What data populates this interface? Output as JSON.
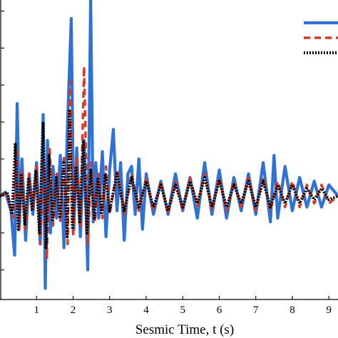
{
  "chart_data": {
    "type": "line",
    "title": "",
    "xlabel": "Sesmic Time, t (s)",
    "ylabel": "",
    "xlim": [
      0,
      9.25
    ],
    "ylim": [
      -2.8,
      5.3
    ],
    "x_ticks": [
      1,
      2,
      3,
      4,
      5,
      6,
      7,
      8,
      9
    ],
    "x_tick_labels": [
      "1",
      "2",
      "3",
      "4",
      "5",
      "6",
      "7",
      "8",
      "9"
    ],
    "grid": false,
    "legend": "top-right",
    "series": [
      {
        "style": "solid",
        "color": "#2f72d6",
        "x": [
          0.0,
          0.15,
          0.3,
          0.4,
          0.47,
          0.53,
          0.6,
          0.7,
          0.8,
          0.9,
          1.0,
          1.1,
          1.18,
          1.24,
          1.3,
          1.38,
          1.45,
          1.55,
          1.65,
          1.75,
          1.85,
          1.95,
          2.02,
          2.1,
          2.2,
          2.3,
          2.4,
          2.48,
          2.55,
          2.62,
          2.7,
          2.8,
          2.9,
          3.0,
          3.1,
          3.2,
          3.3,
          3.4,
          3.5,
          3.6,
          3.7,
          3.8,
          3.9,
          4.0,
          4.2,
          4.4,
          4.6,
          4.8,
          5.0,
          5.2,
          5.4,
          5.6,
          5.8,
          6.0,
          6.2,
          6.4,
          6.6,
          6.8,
          7.0,
          7.2,
          7.4,
          7.5,
          7.6,
          7.8,
          8.0,
          8.2,
          8.4,
          8.6,
          8.8,
          9.0,
          9.25
        ],
        "y": [
          0.0,
          0.1,
          -0.4,
          -1.6,
          2.5,
          -0.8,
          1.0,
          -1.2,
          0.6,
          -0.5,
          0.9,
          -1.3,
          2.2,
          -2.5,
          1.5,
          -1.0,
          0.8,
          -0.6,
          1.1,
          -1.4,
          2.0,
          4.8,
          -0.9,
          1.3,
          -1.1,
          1.5,
          -2.0,
          5.4,
          -0.7,
          0.9,
          -0.6,
          1.2,
          -1.1,
          0.7,
          1.8,
          -0.4,
          0.9,
          -1.2,
          0.6,
          0.8,
          -0.5,
          1.0,
          -0.9,
          0.6,
          -0.5,
          0.4,
          -0.5,
          0.6,
          -0.4,
          0.5,
          -0.6,
          0.9,
          -0.5,
          0.7,
          -0.6,
          0.5,
          -0.4,
          0.6,
          -0.5,
          0.9,
          -0.7,
          1.1,
          -0.6,
          0.8,
          -0.4,
          0.5,
          -0.3,
          0.4,
          -0.3,
          0.3,
          0.0
        ]
      },
      {
        "style": "dashed",
        "color": "#d43a25",
        "x": [
          0.0,
          0.2,
          0.35,
          0.45,
          0.52,
          0.6,
          0.7,
          0.8,
          0.9,
          1.0,
          1.1,
          1.2,
          1.28,
          1.36,
          1.45,
          1.55,
          1.65,
          1.75,
          1.85,
          1.92,
          2.0,
          2.1,
          2.2,
          2.3,
          2.4,
          2.5,
          2.6,
          2.7,
          2.8,
          2.9,
          3.0,
          3.2,
          3.4,
          3.6,
          3.8,
          4.0,
          4.2,
          4.4,
          4.6,
          4.8,
          5.0,
          5.2,
          5.4,
          5.6,
          5.8,
          6.0,
          6.2,
          6.4,
          6.6,
          6.8,
          7.0,
          7.2,
          7.4,
          7.6,
          7.8,
          8.0,
          8.2,
          8.4,
          8.6,
          8.8,
          9.0,
          9.25
        ],
        "y": [
          0.0,
          0.1,
          -0.6,
          1.3,
          -1.0,
          0.7,
          -0.9,
          0.6,
          -0.4,
          0.8,
          -1.3,
          1.0,
          -1.7,
          1.3,
          -0.8,
          0.6,
          -0.7,
          1.1,
          -1.3,
          3.1,
          -1.1,
          1.0,
          -0.9,
          3.5,
          -1.3,
          0.9,
          -0.7,
          0.6,
          -0.6,
          0.8,
          -0.5,
          0.7,
          -0.5,
          0.6,
          -0.4,
          0.5,
          -0.4,
          0.4,
          -0.5,
          0.4,
          -0.4,
          0.5,
          -0.3,
          0.6,
          -0.4,
          0.5,
          -0.4,
          0.4,
          -0.3,
          0.5,
          -0.4,
          0.5,
          -0.4,
          0.4,
          -0.3,
          0.4,
          -0.3,
          0.3,
          -0.2,
          0.3,
          -0.2,
          0.0
        ]
      },
      {
        "style": "dotted",
        "color": "#000000",
        "x": [
          0.0,
          0.2,
          0.33,
          0.42,
          0.5,
          0.58,
          0.68,
          0.78,
          0.88,
          0.98,
          1.08,
          1.18,
          1.26,
          1.34,
          1.44,
          1.54,
          1.64,
          1.74,
          1.84,
          1.9,
          1.98,
          2.08,
          2.18,
          2.28,
          2.38,
          2.48,
          2.58,
          2.68,
          2.78,
          2.88,
          3.0,
          3.2,
          3.4,
          3.6,
          3.8,
          4.0,
          4.2,
          4.4,
          4.6,
          4.8,
          5.0,
          5.2,
          5.4,
          5.6,
          5.8,
          6.0,
          6.2,
          6.4,
          6.6,
          6.8,
          7.0,
          7.2,
          7.4,
          7.6,
          7.8,
          8.0,
          8.2,
          8.4,
          8.6,
          8.8,
          9.0,
          9.25
        ],
        "y": [
          0.0,
          0.1,
          -0.5,
          1.4,
          -0.9,
          0.6,
          -0.8,
          0.5,
          -0.4,
          0.7,
          -1.0,
          2.0,
          -1.4,
          1.1,
          -0.7,
          0.5,
          -0.6,
          0.9,
          -1.1,
          2.3,
          -0.9,
          0.8,
          -0.7,
          1.5,
          -1.0,
          0.7,
          -0.6,
          0.5,
          -0.5,
          0.6,
          -0.4,
          0.6,
          -0.4,
          0.5,
          -0.3,
          0.4,
          -0.3,
          0.3,
          -0.4,
          0.3,
          -0.3,
          0.4,
          -0.2,
          0.5,
          -0.3,
          0.4,
          -0.3,
          0.3,
          -0.2,
          0.4,
          -0.3,
          0.4,
          -0.3,
          0.3,
          -0.2,
          0.3,
          -0.2,
          0.2,
          -0.1,
          0.2,
          -0.1,
          0.0
        ]
      }
    ]
  }
}
